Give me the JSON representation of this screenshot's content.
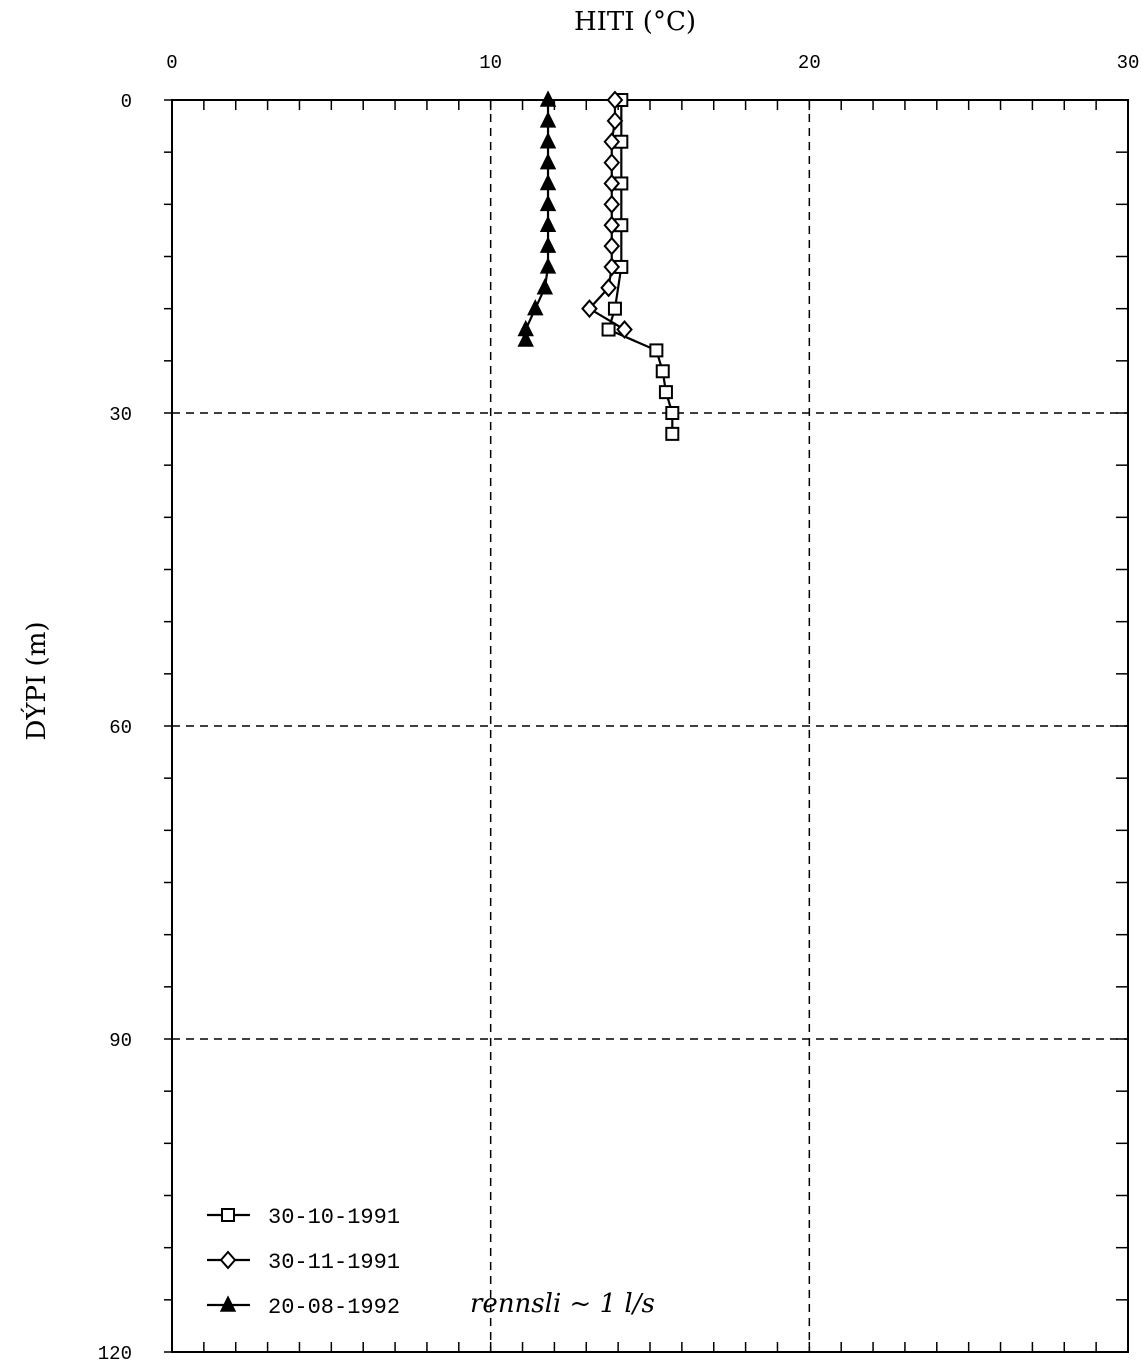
{
  "chart_data": {
    "type": "line",
    "title": "",
    "xlabel": "HITI (°C)",
    "ylabel": "DÝPI (m)",
    "xlim": [
      0,
      30
    ],
    "ylim": [
      0,
      120
    ],
    "y_inverted": true,
    "x_axis_position": "top",
    "x_ticks": [
      0,
      10,
      20,
      30
    ],
    "y_ticks": [
      0,
      30,
      60,
      90,
      120
    ],
    "grid": "dashed",
    "legend_position": "bottom-left",
    "series": [
      {
        "name": "30-10-1991",
        "marker": "square",
        "points": [
          [
            14.1,
            0
          ],
          [
            14.1,
            4
          ],
          [
            14.1,
            8
          ],
          [
            14.1,
            12
          ],
          [
            14.1,
            16
          ],
          [
            13.9,
            20
          ],
          [
            13.7,
            22
          ],
          [
            15.2,
            24
          ],
          [
            15.4,
            26
          ],
          [
            15.5,
            28
          ],
          [
            15.7,
            30
          ],
          [
            15.7,
            32
          ]
        ]
      },
      {
        "name": "30-11-1991",
        "marker": "diamond",
        "points": [
          [
            13.9,
            0
          ],
          [
            13.9,
            2
          ],
          [
            13.8,
            4
          ],
          [
            13.8,
            6
          ],
          [
            13.8,
            8
          ],
          [
            13.8,
            10
          ],
          [
            13.8,
            12
          ],
          [
            13.8,
            14
          ],
          [
            13.8,
            16
          ],
          [
            13.7,
            18
          ],
          [
            13.1,
            20
          ],
          [
            14.2,
            22
          ]
        ]
      },
      {
        "name": "20-08-1992",
        "marker": "filled-triangle",
        "points": [
          [
            11.8,
            0
          ],
          [
            11.8,
            2
          ],
          [
            11.8,
            4
          ],
          [
            11.8,
            6
          ],
          [
            11.8,
            8
          ],
          [
            11.8,
            10
          ],
          [
            11.8,
            12
          ],
          [
            11.8,
            14
          ],
          [
            11.8,
            16
          ],
          [
            11.7,
            18
          ],
          [
            11.4,
            20
          ],
          [
            11.1,
            22
          ],
          [
            11.1,
            23
          ]
        ]
      }
    ],
    "annotation": "rennsli ~ 1 l/s"
  }
}
